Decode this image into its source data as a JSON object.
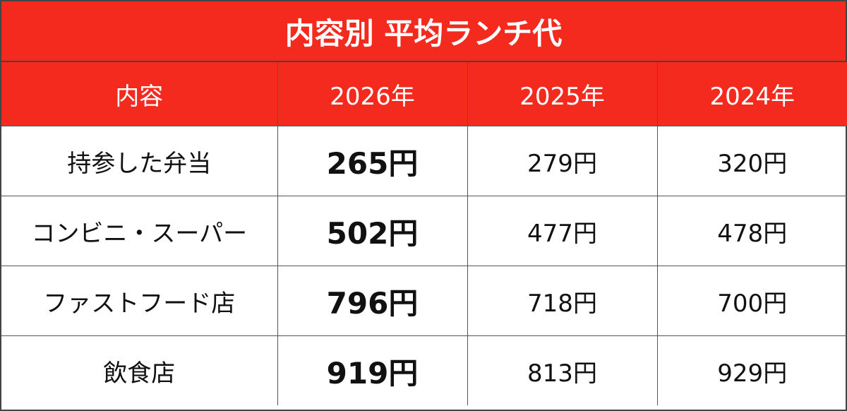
{
  "title": "内容別 平均ランチ代",
  "table": {
    "header": [
      "内容",
      "2026年",
      "2025年",
      "2024年"
    ],
    "rows": [
      [
        "持参した弁当",
        "265円",
        "279円",
        "320円"
      ],
      [
        "コンビニ・スーパー",
        "502円",
        "477円",
        "478円"
      ],
      [
        "ファストフード店",
        "796円",
        "718円",
        "700円"
      ],
      [
        "飲食店",
        "919円",
        "813円",
        "929円"
      ]
    ]
  }
}
